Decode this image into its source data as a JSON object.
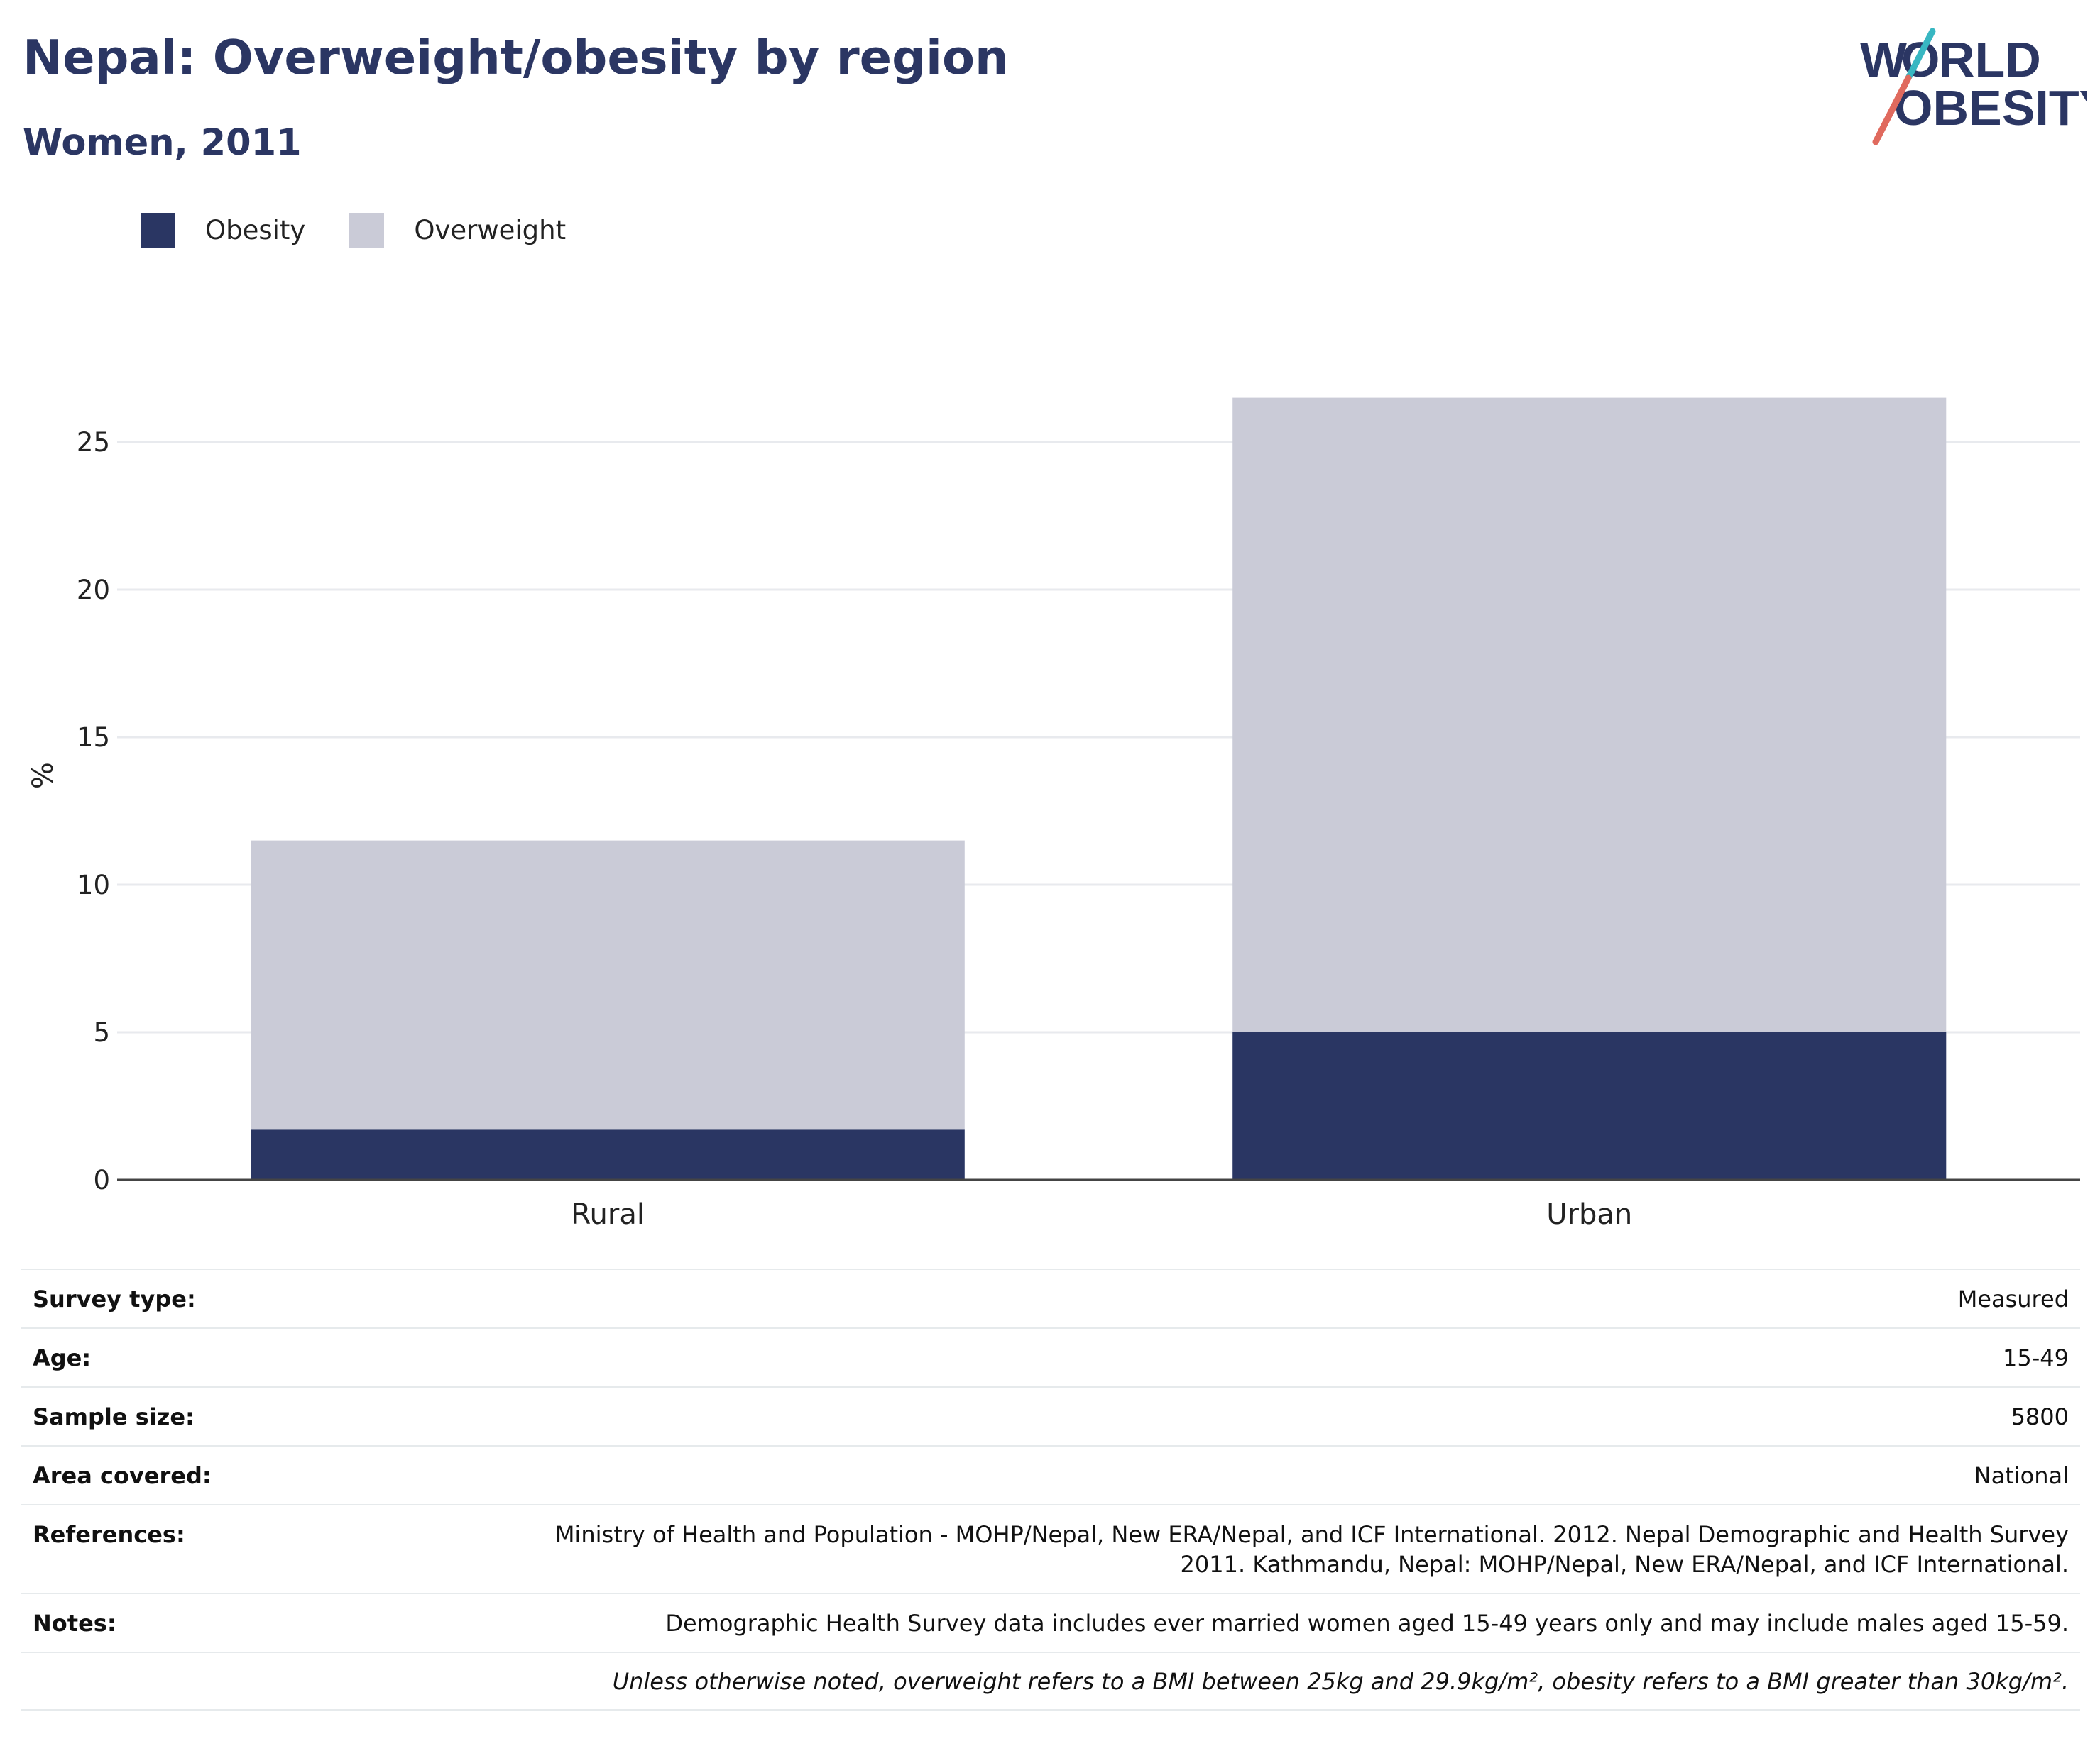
{
  "header": {
    "title": "Nepal: Overweight/obesity by region",
    "subtitle": "Women, 2011"
  },
  "logo": {
    "line1": "WORLD",
    "line2": "OBESITY"
  },
  "colors": {
    "obesity": "#2a3663",
    "overweight": "#cacbd7",
    "title": "#2b3663",
    "grid": "#e8eaee",
    "axis": "#444444"
  },
  "legend": [
    {
      "label": "Obesity",
      "color": "#2a3663"
    },
    {
      "label": "Overweight",
      "color": "#cacbd7"
    }
  ],
  "chart_data": {
    "type": "bar",
    "stacked": true,
    "categories": [
      "Rural",
      "Urban"
    ],
    "series": [
      {
        "name": "Obesity",
        "values": [
          1.7,
          5.0
        ]
      },
      {
        "name": "Overweight",
        "values": [
          9.8,
          21.5
        ]
      }
    ],
    "ylabel": "%",
    "xlabel": "",
    "ylim": [
      0,
      27.5
    ],
    "yticks": [
      0,
      5,
      10,
      15,
      20,
      25
    ],
    "grid": true,
    "legend_position": "top-left"
  },
  "meta": [
    {
      "label": "Survey type:",
      "value": "Measured"
    },
    {
      "label": "Age:",
      "value": "15-49"
    },
    {
      "label": "Sample size:",
      "value": "5800"
    },
    {
      "label": "Area covered:",
      "value": "National"
    },
    {
      "label": "References:",
      "value": "Ministry of Health and Population - MOHP/Nepal, New ERA/Nepal, and ICF International. 2012. Nepal Demographic and Health Survey 2011. Kathmandu, Nepal: MOHP/Nepal, New ERA/Nepal, and ICF International."
    },
    {
      "label": "Notes:",
      "value": "Demographic Health Survey data includes ever married women aged 15-49 years only and may include males aged 15-59."
    }
  ],
  "footnote": "Unless otherwise noted, overweight refers to a BMI between 25kg and 29.9kg/m², obesity refers to a BMI greater than 30kg/m²."
}
